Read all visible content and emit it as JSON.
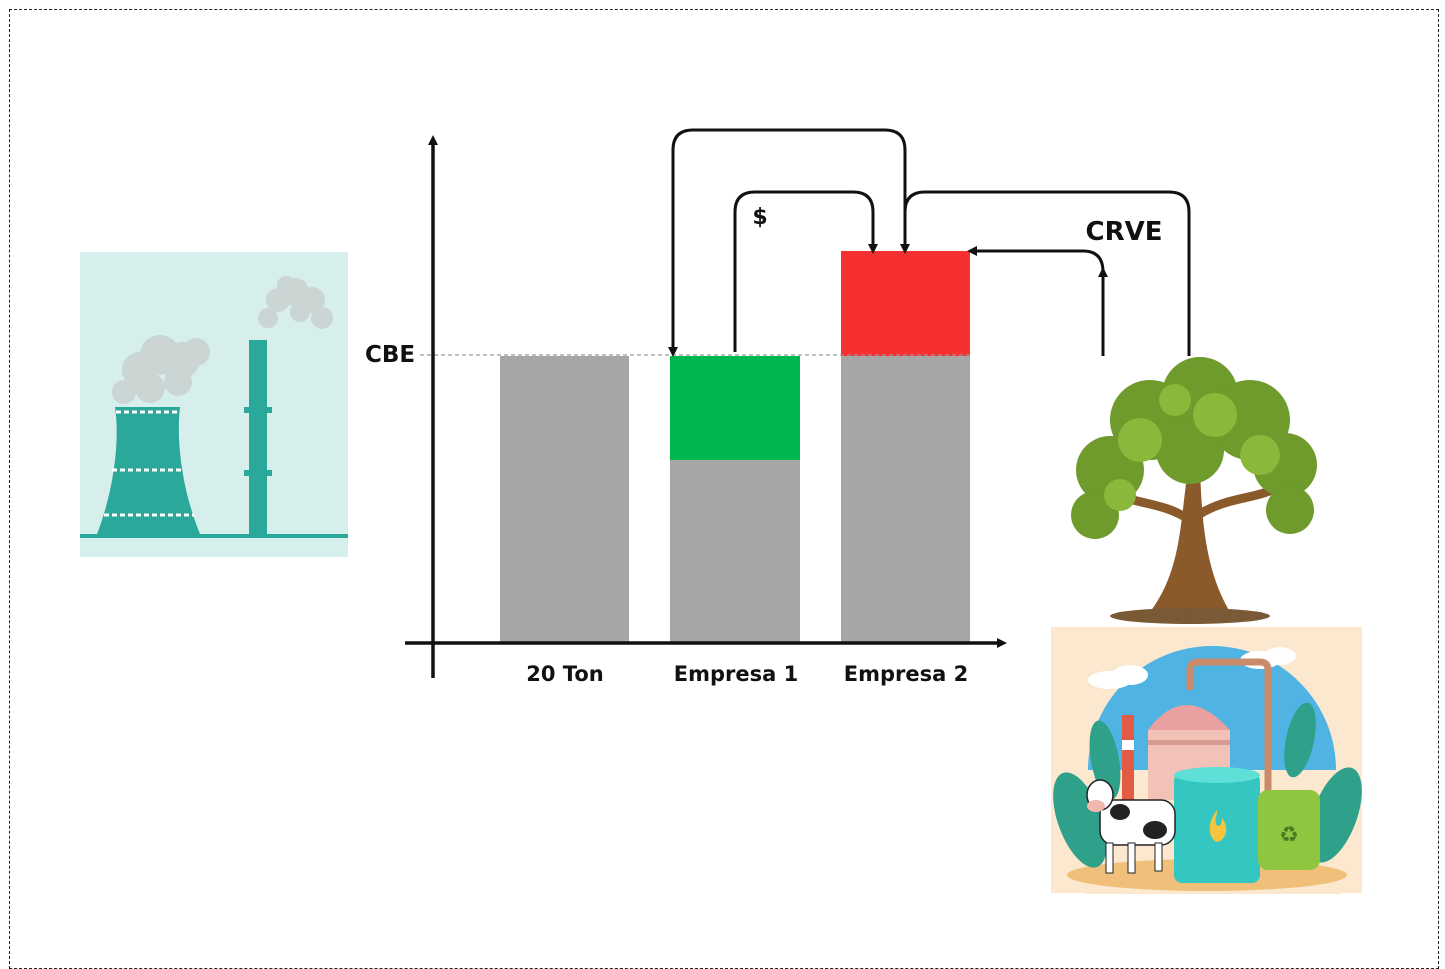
{
  "diagram": {
    "threshold_label": "CBE",
    "money_label": "$",
    "credit_label": "CRVE",
    "categories": [
      "20 Ton",
      "Empresa 1",
      "Empresa 2"
    ],
    "colors": {
      "bar": "#a6a6a6",
      "surplus": "#00b84f",
      "excess": "#f5302f",
      "axis": "#111111",
      "factory_bg": "#d6efec",
      "factory": "#2aa99a"
    },
    "icons": [
      "power-plant-icon",
      "tree-icon",
      "biogas-plant-icon"
    ]
  }
}
